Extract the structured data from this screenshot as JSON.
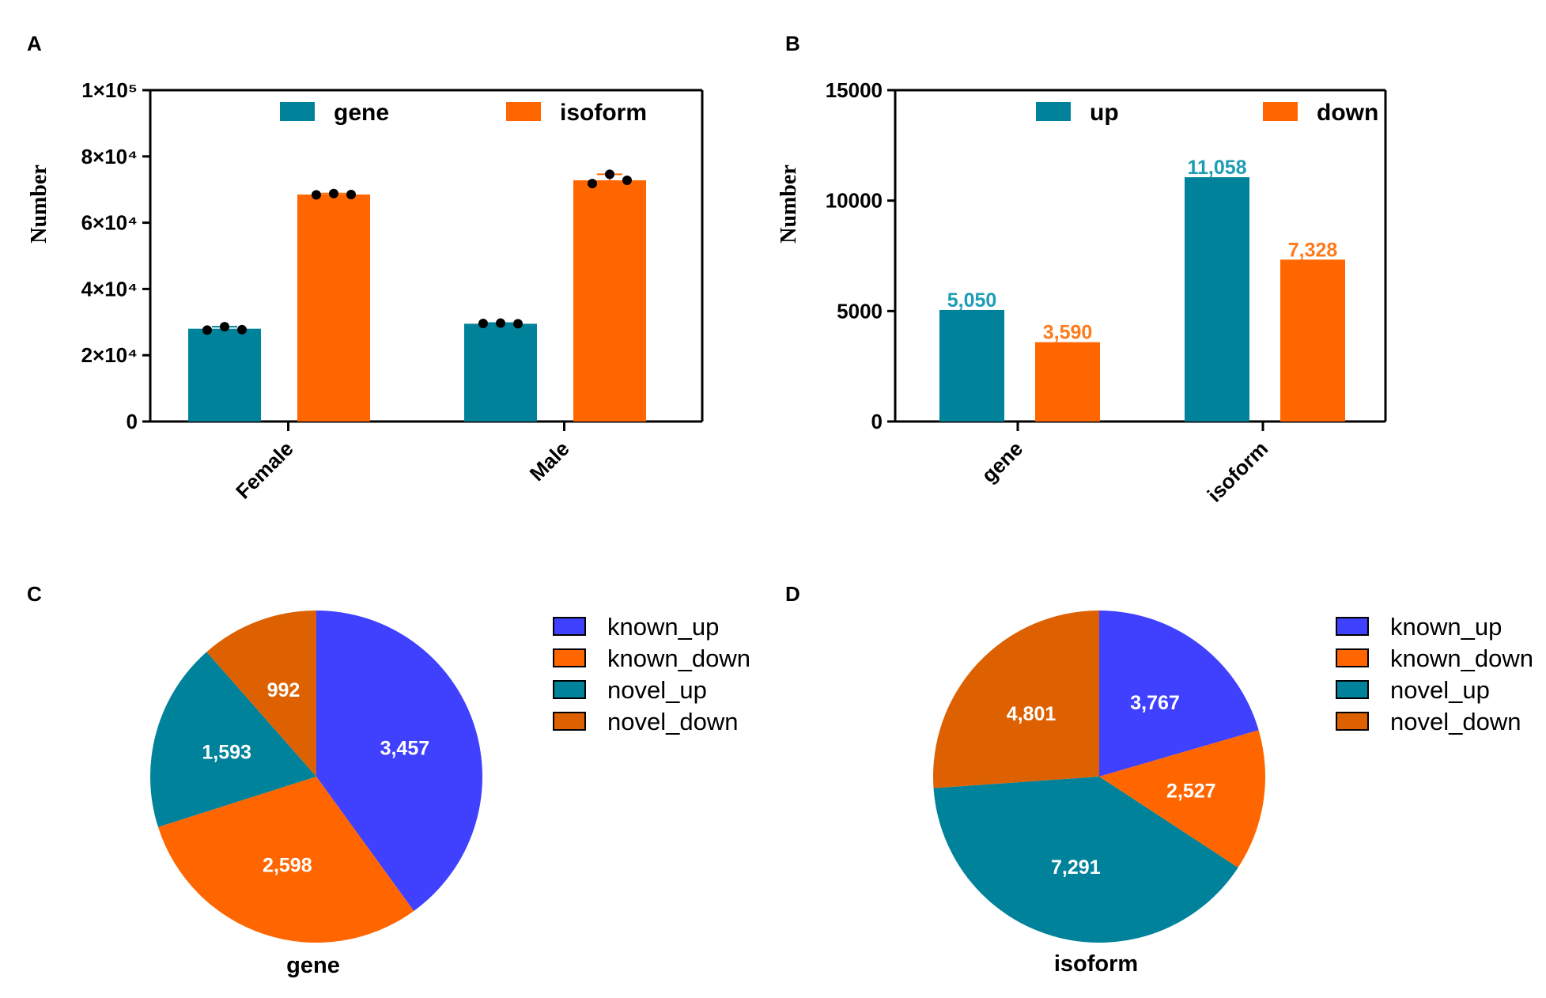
{
  "colors": {
    "teal": "#00829A",
    "orange": "#FF6600",
    "blue": "#4040FF",
    "dark_orange": "#DD6100",
    "label_teal": "#1C9DB3",
    "label_orange": "#FF7A1A",
    "black": "#000000"
  },
  "chart_data": [
    {
      "panel": "A",
      "type": "bar",
      "title": "",
      "ylabel": "Number",
      "xlabel": "",
      "categories": [
        "Female",
        "Male"
      ],
      "ylim": [
        0,
        100000
      ],
      "yticks": [
        {
          "value": 0,
          "label": "0"
        },
        {
          "value": 20000,
          "label": "2×10⁴"
        },
        {
          "value": 40000,
          "label": "4×10⁴"
        },
        {
          "value": 60000,
          "label": "6×10⁴"
        },
        {
          "value": 80000,
          "label": "8×10⁴"
        },
        {
          "value": 100000,
          "label": "1×10⁵"
        }
      ],
      "legend_position": "top",
      "series": [
        {
          "name": "gene",
          "color": "#00829A",
          "values": [
            28000,
            29500
          ],
          "points": [
            [
              27600,
              28600,
              27700
            ],
            [
              29600,
              29700,
              29500
            ]
          ]
        },
        {
          "name": "isoform",
          "color": "#FF6600",
          "values": [
            68500,
            72800
          ],
          "points": [
            [
              68400,
              68800,
              68500
            ],
            [
              71800,
              74600,
              72800
            ]
          ]
        }
      ]
    },
    {
      "panel": "B",
      "type": "bar",
      "title": "",
      "ylabel": "Number",
      "xlabel": "",
      "categories": [
        "gene",
        "isoform"
      ],
      "ylim": [
        0,
        15000
      ],
      "yticks": [
        {
          "value": 0,
          "label": "0"
        },
        {
          "value": 5000,
          "label": "5000"
        },
        {
          "value": 10000,
          "label": "10000"
        },
        {
          "value": 15000,
          "label": "15000"
        }
      ],
      "legend_position": "top",
      "series": [
        {
          "name": "up",
          "color": "#00829A",
          "values": [
            5050,
            11058
          ],
          "labels": [
            "5,050",
            "11,058"
          ]
        },
        {
          "name": "down",
          "color": "#FF6600",
          "values": [
            3590,
            7328
          ],
          "labels": [
            "3,590",
            "7,328"
          ]
        }
      ]
    },
    {
      "panel": "C",
      "type": "pie",
      "title": "gene",
      "legend_position": "right",
      "slices": [
        {
          "name": "known_up",
          "value": 3457,
          "label": "3,457",
          "color": "#4040FF"
        },
        {
          "name": "known_down",
          "value": 2598,
          "label": "2,598",
          "color": "#FF6600"
        },
        {
          "name": "novel_up",
          "value": 1593,
          "label": "1,593",
          "color": "#00829A"
        },
        {
          "name": "novel_down",
          "value": 992,
          "label": "992",
          "color": "#DD6100"
        }
      ]
    },
    {
      "panel": "D",
      "type": "pie",
      "title": "isoform",
      "legend_position": "right",
      "slices": [
        {
          "name": "known_up",
          "value": 3767,
          "label": "3,767",
          "color": "#4040FF"
        },
        {
          "name": "known_down",
          "value": 2527,
          "label": "2,527",
          "color": "#FF6600"
        },
        {
          "name": "novel_up",
          "value": 7291,
          "label": "7,291",
          "color": "#00829A"
        },
        {
          "name": "novel_down",
          "value": 4801,
          "label": "4,801",
          "color": "#DD6100"
        }
      ]
    }
  ]
}
